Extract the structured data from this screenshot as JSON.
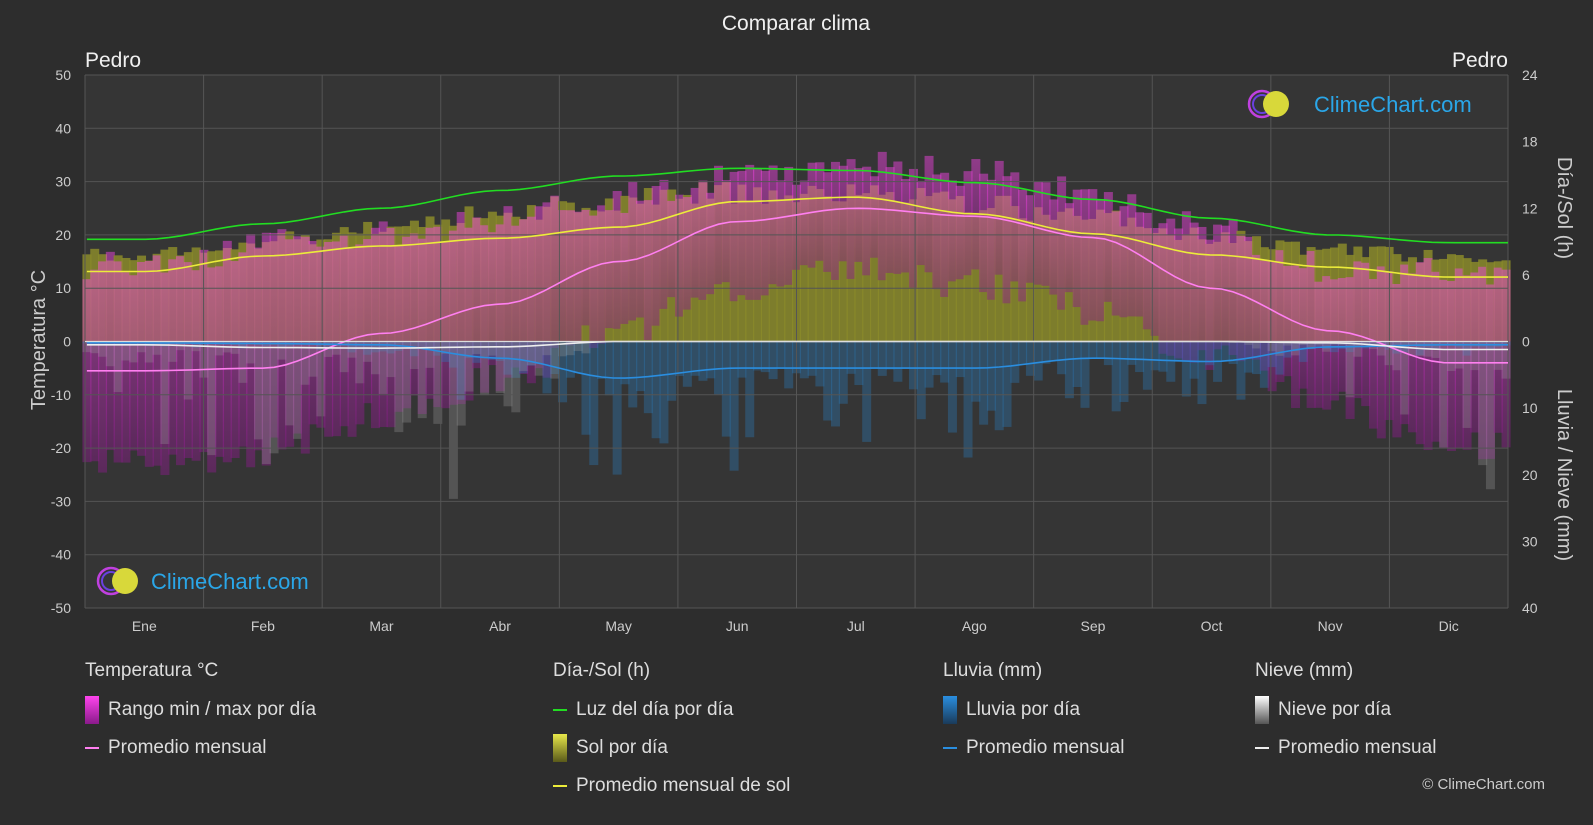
{
  "title": "Comparar clima",
  "location_left": "Pedro",
  "location_right": "Pedro",
  "logo_text": "ClimeChart.com",
  "copyright": "© ClimeChart.com",
  "colors": {
    "background": "#2d2d2d",
    "temp_range": "#d12fc8",
    "temp_avg": "#ff7ff0",
    "daylight": "#22dd22",
    "sunshine_fill": "#8a8a2a",
    "sun_avg": "#ecec3a",
    "rain": "#2a7fc0",
    "rain_avg": "#2a8ee0",
    "snow": "#9a9a9a",
    "snow_avg": "#eeeeee"
  },
  "chart_data": {
    "type": "line",
    "title": "Comparar clima",
    "categories": [
      "Ene",
      "Feb",
      "Mar",
      "Abr",
      "May",
      "Jun",
      "Jul",
      "Ago",
      "Sep",
      "Oct",
      "Nov",
      "Dic"
    ],
    "left_axis": {
      "label": "Temperatura °C",
      "min": -50,
      "max": 50,
      "ticks": [
        50,
        40,
        30,
        20,
        10,
        0,
        -10,
        -20,
        -30,
        -40,
        -50
      ]
    },
    "right_axis_top": {
      "label": "Día-/Sol (h)",
      "min": 0,
      "max": 24,
      "ticks": [
        24,
        18,
        12,
        6,
        0
      ]
    },
    "right_axis_bottom": {
      "label": "Lluvia / Nieve (mm)",
      "min": 0,
      "max": 40,
      "ticks": [
        0,
        10,
        20,
        30,
        40
      ]
    },
    "grid": true,
    "series": [
      {
        "name": "Promedio mensual",
        "group": "temperature",
        "unit": "°C",
        "values": [
          -5.5,
          -5.0,
          1.5,
          7.0,
          15.0,
          22.5,
          25.0,
          23.5,
          19.5,
          10.0,
          2.0,
          -4.0
        ]
      },
      {
        "name": "Luz del día por día",
        "group": "sun",
        "unit": "h",
        "values": [
          9.2,
          10.6,
          12.0,
          13.6,
          14.9,
          15.6,
          15.4,
          14.3,
          12.8,
          11.1,
          9.6,
          8.9
        ]
      },
      {
        "name": "Promedio mensual de sol",
        "group": "sun",
        "unit": "h",
        "values": [
          6.3,
          7.7,
          8.6,
          9.3,
          10.3,
          12.6,
          13.0,
          11.5,
          9.7,
          7.8,
          6.7,
          5.8
        ]
      },
      {
        "name": "Promedio mensual",
        "group": "rain",
        "unit": "mm",
        "values": [
          0.2,
          0.3,
          0.5,
          2.5,
          5.5,
          4.0,
          4.0,
          4.0,
          2.5,
          3.0,
          0.8,
          0.5
        ]
      },
      {
        "name": "Promedio mensual",
        "group": "snow",
        "unit": "mm",
        "values": [
          0.5,
          0.9,
          1.0,
          0.8,
          0.0,
          0.0,
          0.0,
          0.0,
          0.0,
          0.0,
          0.2,
          1.2
        ]
      }
    ],
    "temp_range_daily": {
      "min": [
        -23,
        -21,
        -14,
        -7,
        2,
        10,
        13,
        11,
        6,
        -3,
        -12,
        -20
      ],
      "max": [
        14,
        18,
        20,
        23,
        27,
        31,
        33,
        32,
        28,
        21,
        14,
        13
      ]
    },
    "sunshine_daily_max": [
      8.5,
      9.8,
      11.0,
      12.6,
      13.8,
      14.6,
      14.5,
      13.4,
      12.0,
      10.2,
      9.0,
      8.2
    ],
    "legend": [
      {
        "title": "Temperatura °C",
        "items": [
          {
            "type": "bar",
            "label": "Rango min / max por día"
          },
          {
            "type": "line",
            "label": "Promedio mensual"
          }
        ]
      },
      {
        "title": "Día-/Sol (h)",
        "items": [
          {
            "type": "line",
            "label": "Luz del día por día"
          },
          {
            "type": "bar",
            "label": "Sol por día"
          },
          {
            "type": "line",
            "label": "Promedio mensual de sol"
          }
        ]
      },
      {
        "title": "Lluvia (mm)",
        "items": [
          {
            "type": "bar",
            "label": "Lluvia por día"
          },
          {
            "type": "line",
            "label": "Promedio mensual"
          }
        ]
      },
      {
        "title": "Nieve (mm)",
        "items": [
          {
            "type": "bar",
            "label": "Nieve por día"
          },
          {
            "type": "line",
            "label": "Promedio mensual"
          }
        ]
      }
    ]
  }
}
